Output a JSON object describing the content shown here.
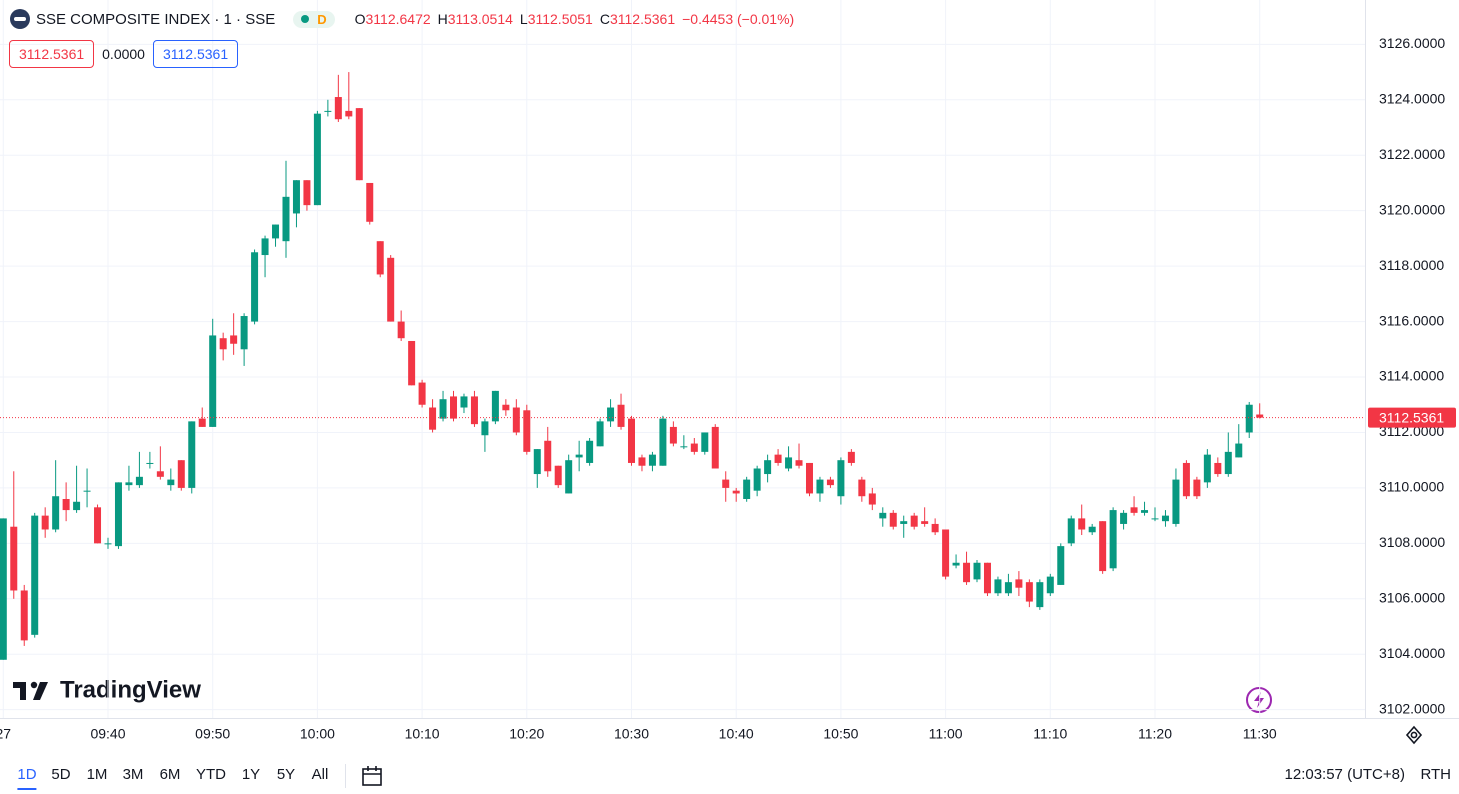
{
  "chart_data": {
    "type": "candlestick",
    "title": "SSE COMPOSITE INDEX · 1 · SSE",
    "interval_badge": "D",
    "ohlc_legend": [
      {
        "key": "O",
        "value": "3112.6472"
      },
      {
        "key": "H",
        "value": "3113.0514"
      },
      {
        "key": "L",
        "value": "3112.5051"
      },
      {
        "key": "C",
        "value": "3112.5361"
      }
    ],
    "change": "−0.4453 (−0.01%)",
    "price_boxes": [
      "3112.5361",
      "0.0000",
      "3112.5361"
    ],
    "categories": [
      "27",
      null,
      null,
      null,
      null,
      null,
      null,
      null,
      null,
      null,
      "09:40",
      null,
      null,
      null,
      null,
      null,
      null,
      null,
      null,
      null,
      "09:50",
      null,
      null,
      null,
      null,
      null,
      null,
      null,
      null,
      null,
      "10:00",
      null,
      null,
      null,
      null,
      null,
      null,
      null,
      null,
      null,
      "10:10",
      null,
      null,
      null,
      null,
      null,
      null,
      null,
      null,
      null,
      "10:20",
      null,
      null,
      null,
      null,
      null,
      null,
      null,
      null,
      null,
      "10:30",
      null,
      null,
      null,
      null,
      null,
      null,
      null,
      null,
      null,
      "10:40",
      null,
      null,
      null,
      null,
      null,
      null,
      null,
      null,
      null,
      "10:50",
      null,
      null,
      null,
      null,
      null,
      null,
      null,
      null,
      null,
      "11:00",
      null,
      null,
      null,
      null,
      null,
      null,
      null,
      null,
      null,
      "11:10",
      null,
      null,
      null,
      null,
      null,
      null,
      null,
      null,
      null,
      "11:20",
      null,
      null,
      null,
      null,
      null,
      null,
      null,
      null,
      null,
      "11:30"
    ],
    "open": [
      3103.8,
      3108.6,
      3106.3,
      3104.7,
      3109.0,
      3108.5,
      3109.6,
      3109.2,
      3109.9,
      3109.3,
      3108.0,
      3107.9,
      3110.1,
      3110.1,
      3110.9,
      3110.6,
      3110.1,
      3111.0,
      3110.0,
      3112.5,
      3112.2,
      3115.4,
      3115.5,
      3115.0,
      3116.0,
      3118.4,
      3119.0,
      3118.9,
      3119.9,
      3121.1,
      3120.2,
      3123.6,
      3124.1,
      3123.6,
      3123.7,
      3121.0,
      3118.9,
      3118.3,
      3116.0,
      3115.3,
      3113.8,
      3112.9,
      3112.5,
      3113.3,
      3112.9,
      3113.3,
      3111.9,
      3112.4,
      3113.0,
      3112.9,
      3112.8,
      3110.5,
      3111.7,
      3110.8,
      3109.8,
      3111.1,
      3110.9,
      3111.5,
      3112.4,
      3113.0,
      3112.5,
      3111.1,
      3110.8,
      3110.8,
      3112.2,
      3111.5,
      3111.6,
      3111.3,
      3112.2,
      3110.3,
      3109.9,
      3109.6,
      3109.9,
      3110.5,
      3111.2,
      3110.7,
      3111.0,
      3110.9,
      3109.8,
      3110.3,
      3109.7,
      3111.3,
      3110.3,
      3109.8,
      3108.9,
      3109.1,
      3108.7,
      3109.0,
      3108.8,
      3108.7,
      3108.5,
      3107.2,
      3107.3,
      3106.7,
      3107.3,
      3106.2,
      3106.2,
      3106.7,
      3106.6,
      3105.7,
      3106.2,
      3106.5,
      3108.0,
      3108.9,
      3108.4,
      3108.8,
      3107.1,
      3108.7,
      3109.3,
      3109.1,
      3108.9,
      3108.8,
      3108.7,
      3110.9,
      3110.3,
      3110.2,
      3110.9,
      3110.5,
      3111.1,
      3112.0,
      3112.6472
    ],
    "high": [
      3108.9,
      3110.6,
      3106.5,
      3109.1,
      3109.3,
      3111.0,
      3110.2,
      3110.8,
      3110.7,
      3109.4,
      3108.2,
      3110.2,
      3110.8,
      3111.3,
      3111.3,
      3111.5,
      3110.7,
      3111.0,
      3112.4,
      3112.9,
      3116.1,
      3115.6,
      3116.3,
      3116.3,
      3118.6,
      3119.1,
      3119.5,
      3121.8,
      3121.1,
      3121.1,
      3123.6,
      3124.0,
      3124.9,
      3125.0,
      3123.7,
      3121.0,
      3118.9,
      3118.4,
      3116.4,
      3115.3,
      3113.9,
      3113.2,
      3113.5,
      3113.5,
      3113.4,
      3113.5,
      3112.5,
      3113.5,
      3113.2,
      3113.2,
      3113.0,
      3111.4,
      3112.2,
      3110.8,
      3111.2,
      3111.7,
      3111.8,
      3112.5,
      3113.2,
      3113.4,
      3112.6,
      3111.2,
      3111.3,
      3112.6,
      3112.4,
      3111.9,
      3111.8,
      3112.0,
      3112.3,
      3110.6,
      3110.0,
      3110.4,
      3110.8,
      3111.2,
      3111.4,
      3111.5,
      3111.6,
      3110.9,
      3110.4,
      3110.4,
      3111.1,
      3111.4,
      3110.4,
      3110.0,
      3109.3,
      3109.2,
      3109.0,
      3109.1,
      3109.3,
      3108.9,
      3108.5,
      3107.6,
      3107.7,
      3107.4,
      3107.3,
      3106.8,
      3106.9,
      3107.0,
      3106.7,
      3106.7,
      3106.9,
      3108.0,
      3109.0,
      3109.4,
      3108.7,
      3108.8,
      3109.3,
      3109.2,
      3109.7,
      3109.5,
      3109.3,
      3109.2,
      3110.7,
      3111.0,
      3110.4,
      3111.4,
      3111.1,
      3112.0,
      3112.3,
      3113.1,
      3113.0514
    ],
    "low": [
      3103.8,
      3106.0,
      3104.3,
      3104.6,
      3108.2,
      3108.4,
      3108.8,
      3109.1,
      3109.3,
      3108.0,
      3107.8,
      3107.8,
      3109.9,
      3110.0,
      3110.7,
      3110.3,
      3109.9,
      3109.9,
      3109.8,
      3112.2,
      3112.2,
      3114.6,
      3114.8,
      3114.4,
      3115.9,
      3117.6,
      3118.7,
      3118.3,
      3119.4,
      3120.0,
      3120.2,
      3123.4,
      3123.2,
      3123.3,
      3121.1,
      3119.5,
      3117.6,
      3116.0,
      3115.3,
      3113.7,
      3112.9,
      3112.0,
      3112.4,
      3112.4,
      3112.7,
      3112.2,
      3111.3,
      3112.3,
      3112.6,
      3111.9,
      3111.2,
      3110.0,
      3110.4,
      3110.0,
      3109.8,
      3110.6,
      3110.8,
      3111.5,
      3112.2,
      3112.1,
      3110.8,
      3110.6,
      3110.6,
      3110.8,
      3111.5,
      3111.4,
      3111.2,
      3111.2,
      3110.7,
      3109.5,
      3109.5,
      3109.5,
      3109.7,
      3110.2,
      3110.8,
      3110.6,
      3110.7,
      3109.7,
      3109.5,
      3110.0,
      3109.4,
      3110.8,
      3109.5,
      3109.2,
      3108.6,
      3108.5,
      3108.2,
      3108.5,
      3108.6,
      3108.3,
      3106.7,
      3107.1,
      3106.5,
      3106.6,
      3106.1,
      3106.1,
      3106.1,
      3106.1,
      3105.7,
      3105.6,
      3106.1,
      3106.5,
      3107.9,
      3108.3,
      3108.3,
      3106.9,
      3107.0,
      3108.5,
      3109.0,
      3109.0,
      3108.8,
      3108.6,
      3108.6,
      3109.6,
      3109.6,
      3110.0,
      3110.4,
      3110.4,
      3111.1,
      3111.8,
      3112.5051
    ],
    "close": [
      3108.9,
      3106.3,
      3104.5,
      3109.0,
      3108.5,
      3109.7,
      3109.2,
      3109.5,
      3109.9,
      3108.0,
      3108.0,
      3110.2,
      3110.2,
      3110.4,
      3110.9,
      3110.4,
      3110.3,
      3110.0,
      3112.4,
      3112.2,
      3115.5,
      3115.0,
      3115.2,
      3116.2,
      3118.5,
      3119.0,
      3119.5,
      3120.5,
      3121.1,
      3120.2,
      3123.5,
      3123.6,
      3123.3,
      3123.4,
      3121.1,
      3119.6,
      3117.7,
      3116.0,
      3115.4,
      3113.7,
      3113.0,
      3112.1,
      3113.2,
      3112.5,
      3113.3,
      3112.3,
      3112.4,
      3113.5,
      3112.8,
      3112.0,
      3111.3,
      3111.4,
      3110.6,
      3110.1,
      3111.0,
      3111.2,
      3111.7,
      3112.4,
      3112.9,
      3112.2,
      3110.9,
      3110.8,
      3111.2,
      3112.5,
      3111.6,
      3111.5,
      3111.3,
      3112.0,
      3110.7,
      3110.0,
      3109.8,
      3110.3,
      3110.7,
      3111.0,
      3110.9,
      3111.1,
      3110.8,
      3109.8,
      3110.3,
      3110.1,
      3111.0,
      3110.9,
      3109.7,
      3109.4,
      3109.1,
      3108.6,
      3108.8,
      3108.6,
      3108.7,
      3108.4,
      3106.8,
      3107.3,
      3106.6,
      3107.3,
      3106.2,
      3106.7,
      3106.6,
      3106.4,
      3105.9,
      3106.6,
      3106.8,
      3107.9,
      3108.9,
      3108.5,
      3108.6,
      3107.0,
      3109.2,
      3109.1,
      3109.1,
      3109.2,
      3108.9,
      3109.0,
      3110.3,
      3109.7,
      3109.7,
      3111.2,
      3110.5,
      3111.3,
      3111.6,
      3113.0,
      3112.5361
    ],
    "up_color": "#089981",
    "down_color": "#f23645",
    "ylim": [
      3101.7,
      3127.6
    ],
    "yticks": [
      {
        "value": 3102,
        "label": "3102.0000"
      },
      {
        "value": 3104,
        "label": "3104.0000"
      },
      {
        "value": 3106,
        "label": "3106.0000"
      },
      {
        "value": 3108,
        "label": "3108.0000"
      },
      {
        "value": 3110,
        "label": "3110.0000"
      },
      {
        "value": 3112,
        "label": "3112.0000"
      },
      {
        "value": 3114,
        "label": "3114.0000"
      },
      {
        "value": 3116,
        "label": "3116.0000"
      },
      {
        "value": 3118,
        "label": "3118.0000"
      },
      {
        "value": 3120,
        "label": "3120.0000"
      },
      {
        "value": 3122,
        "label": "3122.0000"
      },
      {
        "value": 3124,
        "label": "3124.0000"
      },
      {
        "value": 3126,
        "label": "3126.0000"
      }
    ],
    "grid": true,
    "last_price": {
      "value": 3112.5361,
      "label": "3112.5361"
    }
  },
  "brand": "TradingView",
  "toolbar": {
    "ranges": [
      "1D",
      "5D",
      "1M",
      "3M",
      "6M",
      "YTD",
      "1Y",
      "5Y",
      "All"
    ],
    "clock": "12:03:57 (UTC+8)",
    "session": "RTH"
  }
}
